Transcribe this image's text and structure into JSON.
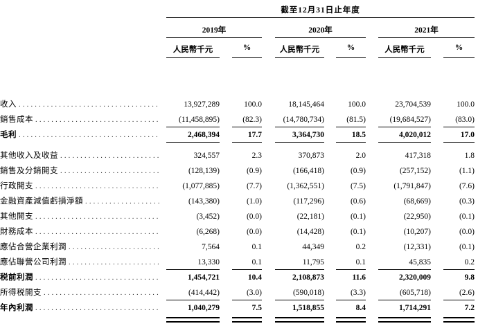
{
  "table": {
    "period_header": "截至12月31日止年度",
    "year_groups": [
      {
        "year": "2019年",
        "unit": "人民幣千元",
        "pct": "%"
      },
      {
        "year": "2020年",
        "unit": "人民幣千元",
        "pct": "%"
      },
      {
        "year": "2021年",
        "unit": "人民幣千元",
        "pct": "%"
      }
    ],
    "rows": [
      {
        "label": "收入",
        "bold": false,
        "rule_below": false,
        "values": [
          "13,927,289",
          "100.0",
          "18,145,464",
          "100.0",
          "23,704,539",
          "100.0"
        ]
      },
      {
        "label": "銷售成本",
        "bold": false,
        "rule_below": true,
        "values": [
          "(11,458,895)",
          "(82.3)",
          "(14,780,734)",
          "(81.5)",
          "(19,684,527)",
          "(83.0)"
        ]
      },
      {
        "label": "毛利",
        "bold": true,
        "rule_below": true,
        "gap_after": true,
        "values": [
          "2,468,394",
          "17.7",
          "3,364,730",
          "18.5",
          "4,020,012",
          "17.0"
        ]
      },
      {
        "label": "其他收入及收益",
        "bold": false,
        "rule_below": false,
        "values": [
          "324,557",
          "2.3",
          "370,873",
          "2.0",
          "417,318",
          "1.8"
        ]
      },
      {
        "label": "銷售及分銷開支",
        "bold": false,
        "rule_below": false,
        "values": [
          "(128,139)",
          "(0.9)",
          "(166,418)",
          "(0.9)",
          "(257,152)",
          "(1.1)"
        ]
      },
      {
        "label": "行政開支",
        "bold": false,
        "rule_below": false,
        "values": [
          "(1,077,885)",
          "(7.7)",
          "(1,362,551)",
          "(7.5)",
          "(1,791,847)",
          "(7.6)"
        ]
      },
      {
        "label": "金融資產減值虧損淨額",
        "bold": false,
        "rule_below": false,
        "values": [
          "(143,380)",
          "(1.0)",
          "(117,296)",
          "(0.6)",
          "(68,669)",
          "(0.3)"
        ]
      },
      {
        "label": "其他開支",
        "bold": false,
        "rule_below": false,
        "values": [
          "(3,452)",
          "(0.0)",
          "(22,181)",
          "(0.1)",
          "(22,950)",
          "(0.1)"
        ]
      },
      {
        "label": "財務成本",
        "bold": false,
        "rule_below": false,
        "values": [
          "(6,268)",
          "(0.0)",
          "(14,428)",
          "(0.1)",
          "(10,207)",
          "(0.0)"
        ]
      },
      {
        "label": "應佔合營企業利潤",
        "bold": false,
        "rule_below": false,
        "values": [
          "7,564",
          "0.1",
          "44,349",
          "0.2",
          "(12,331)",
          "(0.1)"
        ]
      },
      {
        "label": "應佔聯營公司利潤",
        "bold": false,
        "rule_below": true,
        "values": [
          "13,330",
          "0.1",
          "11,795",
          "0.1",
          "45,835",
          "0.2"
        ]
      },
      {
        "label": "税前利潤",
        "bold": true,
        "rule_below": false,
        "values": [
          "1,454,721",
          "10.4",
          "2,108,873",
          "11.6",
          "2,320,009",
          "9.8"
        ]
      },
      {
        "label": "所得税開支",
        "bold": false,
        "rule_below": true,
        "values": [
          "(414,442)",
          "(3.0)",
          "(590,018)",
          "(3.3)",
          "(605,718)",
          "(2.6)"
        ]
      },
      {
        "label": "年內利潤",
        "bold": true,
        "rule_below": false,
        "double_rule_below": true,
        "values": [
          "1,040,279",
          "7.5",
          "1,518,855",
          "8.4",
          "1,714,291",
          "7.2"
        ]
      }
    ]
  }
}
